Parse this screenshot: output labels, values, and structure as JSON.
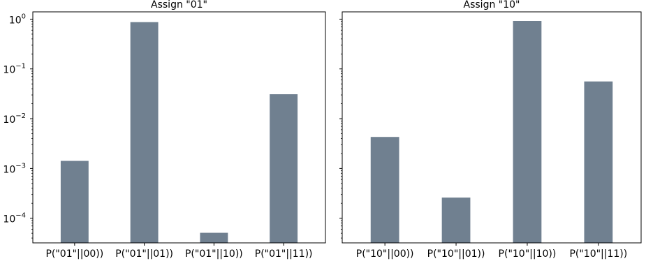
{
  "chart_data": [
    {
      "type": "bar",
      "title": "Assign \"01\"",
      "categories": [
        "P(\"01\"||00))",
        "P(\"01\"||01))",
        "P(\"01\"||10))",
        "P(\"01\"||11))"
      ],
      "values": [
        0.00142,
        0.87,
        5.1e-05,
        0.031
      ],
      "yscale": "log",
      "ylim": [
        3.2e-05,
        1.4
      ],
      "yticks": [
        {
          "value": 1,
          "base": "10",
          "exp": "0"
        },
        {
          "value": 0.1,
          "base": "10",
          "exp": "−1"
        },
        {
          "value": 0.01,
          "base": "10",
          "exp": "−2"
        },
        {
          "value": 0.001,
          "base": "10",
          "exp": "−3"
        },
        {
          "value": 0.0001,
          "base": "10",
          "exp": "−4"
        }
      ],
      "show_ytick_labels": true,
      "bar_color": "#708090",
      "grid": false
    },
    {
      "type": "bar",
      "title": "Assign \"10\"",
      "categories": [
        "P(\"10\"||00))",
        "P(\"10\"||01))",
        "P(\"10\"||10))",
        "P(\"10\"||11))"
      ],
      "values": [
        0.0043,
        0.00026,
        0.92,
        0.056
      ],
      "yscale": "log",
      "ylim": [
        3.2e-05,
        1.4
      ],
      "yticks": [
        {
          "value": 1,
          "base": "10",
          "exp": "0"
        },
        {
          "value": 0.1,
          "base": "10",
          "exp": "−1"
        },
        {
          "value": 0.01,
          "base": "10",
          "exp": "−2"
        },
        {
          "value": 0.001,
          "base": "10",
          "exp": "−3"
        },
        {
          "value": 0.0001,
          "base": "10",
          "exp": "−4"
        }
      ],
      "show_ytick_labels": false,
      "bar_color": "#708090",
      "grid": false
    }
  ]
}
